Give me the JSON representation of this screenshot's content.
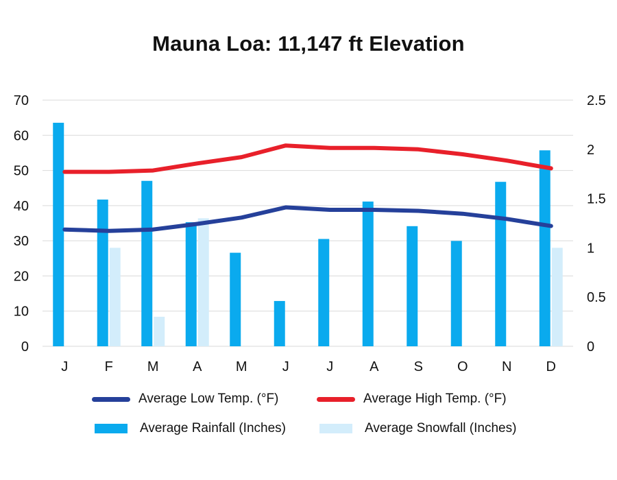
{
  "chart_data": {
    "type": "bar",
    "title": "Mauna Loa: 11,147 ft Elevation",
    "categories": [
      "J",
      "F",
      "M",
      "A",
      "M",
      "J",
      "J",
      "A",
      "S",
      "O",
      "N",
      "D"
    ],
    "left_axis": {
      "ylim": [
        0,
        70
      ],
      "ticks": [
        "0",
        "10",
        "20",
        "30",
        "40",
        "50",
        "60",
        "70"
      ]
    },
    "right_axis": {
      "ylim": [
        0,
        2.5
      ],
      "ticks": [
        "0",
        "0.5",
        "1",
        "1.5",
        "2",
        "2.5"
      ]
    },
    "grid": true,
    "legend_position": "bottom",
    "series": [
      {
        "name": "Average Low Temp. (°F)",
        "kind": "line",
        "axis": "left",
        "color": "#25409a",
        "values": [
          33.2,
          32.8,
          33.2,
          34.8,
          36.6,
          39.5,
          38.8,
          38.8,
          38.5,
          37.7,
          36.2,
          34.2
        ]
      },
      {
        "name": "Average High Temp. (°F)",
        "kind": "line",
        "axis": "left",
        "color": "#e8202a",
        "values": [
          49.6,
          49.6,
          50.0,
          52.0,
          53.8,
          57.1,
          56.4,
          56.4,
          56.0,
          54.6,
          52.8,
          50.6
        ]
      },
      {
        "name": "Average Rainfall (Inches)",
        "kind": "bar",
        "axis": "right",
        "color": "#0aaaee",
        "values": [
          2.27,
          1.49,
          1.68,
          1.26,
          0.95,
          0.46,
          1.09,
          1.47,
          1.22,
          1.07,
          1.67,
          1.99
        ]
      },
      {
        "name": "Average Snowfall (Inches)",
        "kind": "bar",
        "axis": "right",
        "color": "#d3edfb",
        "values": [
          0,
          1.0,
          0.3,
          1.3,
          0,
          0,
          0,
          0,
          0,
          0,
          0,
          1.0
        ]
      }
    ]
  }
}
